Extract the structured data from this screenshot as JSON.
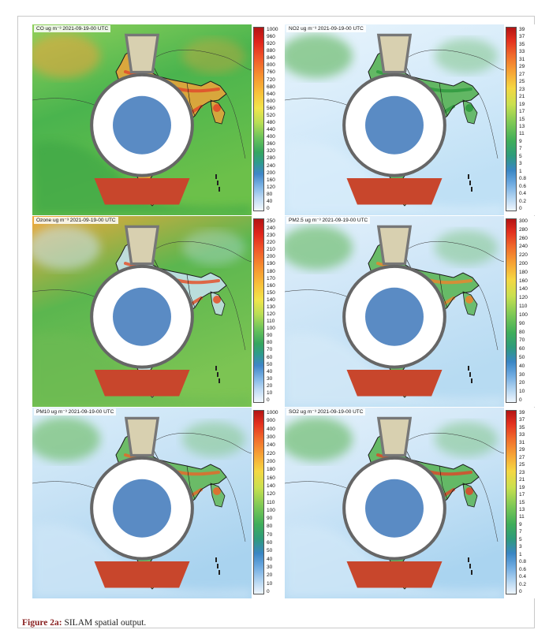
{
  "caption": {
    "label": "Figure 2a:",
    "text": " SILAM spatial output."
  },
  "panels": [
    {
      "id": "co",
      "title": "CO ug m⁻³   2021-09-19-00  UTC",
      "palette": "warm",
      "bg": [
        "#4ab44e",
        "#6cc04a",
        "#8fd05b"
      ],
      "hot": "#e04b2a",
      "land": "#f0a33a",
      "ocean": "#3fa847",
      "ticks": [
        "1000",
        "960",
        "920",
        "880",
        "840",
        "800",
        "760",
        "720",
        "680",
        "640",
        "600",
        "560",
        "520",
        "480",
        "440",
        "400",
        "360",
        "320",
        "280",
        "240",
        "200",
        "160",
        "120",
        "80",
        "40",
        "0"
      ]
    },
    {
      "id": "no2",
      "title": "NO2 ug m⁻³   2021-09-19-00  UTC",
      "palette": "cool",
      "bg": [
        "#d8ecfa",
        "#bfe0f5",
        "#e8f4fc"
      ],
      "hot": "#2f9a3e",
      "land": "#4fae4a",
      "ocean": "#dbeefb",
      "ticks": [
        "39",
        "37",
        "35",
        "33",
        "31",
        "29",
        "27",
        "25",
        "23",
        "21",
        "19",
        "17",
        "15",
        "13",
        "11",
        "9",
        "7",
        "5",
        "3",
        "1",
        "0.8",
        "0.6",
        "0.4",
        "0.2",
        "0"
      ]
    },
    {
      "id": "ozone",
      "title": "Ozone ug m⁻³   2021-09-19-00  UTC",
      "palette": "warm",
      "bg": [
        "#5bb64f",
        "#7cc453",
        "#f1a83a"
      ],
      "hot": "#e3542c",
      "land": "#c9e4f4",
      "ocean": "#6cba52",
      "ticks": [
        "250",
        "240",
        "230",
        "220",
        "210",
        "200",
        "190",
        "180",
        "170",
        "160",
        "150",
        "140",
        "130",
        "120",
        "110",
        "100",
        "90",
        "80",
        "70",
        "60",
        "50",
        "40",
        "30",
        "20",
        "10",
        "0"
      ]
    },
    {
      "id": "pm25",
      "title": "PM2.5 ug m⁻³   2021-09-19-00  UTC",
      "palette": "cool",
      "bg": [
        "#cfe6f7",
        "#b7dbf2",
        "#e2f0fb"
      ],
      "hot": "#e8862f",
      "land": "#56b34d",
      "ocean": "#d6eaf8",
      "ticks": [
        "300",
        "280",
        "260",
        "240",
        "220",
        "200",
        "180",
        "160",
        "140",
        "120",
        "110",
        "100",
        "90",
        "80",
        "70",
        "60",
        "50",
        "40",
        "30",
        "20",
        "10",
        "0"
      ]
    },
    {
      "id": "pm10",
      "title": "PM10 ug m⁻³   2021-09-19-00  UTC",
      "palette": "cool",
      "bg": [
        "#c7e2f5",
        "#a9d3ef",
        "#dbeefa"
      ],
      "hot": "#e46a2c",
      "land": "#5cb54e",
      "ocean": "#cfe6f7",
      "ticks": [
        "1000",
        "900",
        "400",
        "300",
        "240",
        "220",
        "200",
        "180",
        "160",
        "140",
        "120",
        "110",
        "100",
        "90",
        "80",
        "70",
        "60",
        "50",
        "40",
        "30",
        "20",
        "10",
        "0"
      ]
    },
    {
      "id": "so2",
      "title": "SO2 ug m⁻³   2021-09-19-00  UTC",
      "palette": "cool",
      "bg": [
        "#cfe6f7",
        "#aad4f0",
        "#e4f1fb"
      ],
      "hot": "#d94a2b",
      "land": "#52b14c",
      "ocean": "#d2e8f8",
      "ticks": [
        "39",
        "37",
        "35",
        "33",
        "31",
        "29",
        "27",
        "25",
        "23",
        "21",
        "19",
        "17",
        "15",
        "13",
        "11",
        "9",
        "7",
        "5",
        "3",
        "1",
        "0.8",
        "0.6",
        "0.4",
        "0.2",
        "0"
      ]
    }
  ]
}
